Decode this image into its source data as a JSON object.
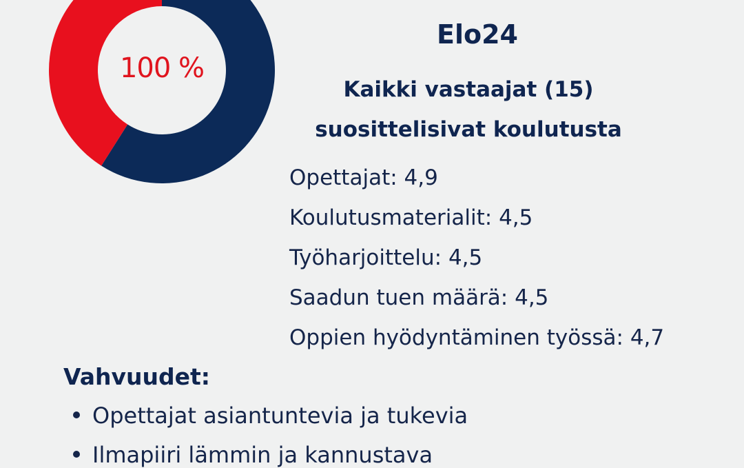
{
  "donut": {
    "label": "100 %",
    "red_color": "#e8101e",
    "navy_color": "#0c2a58",
    "red_fraction": 0.41,
    "navy_fraction": 0.59
  },
  "title": "Elo24",
  "summary": [
    "Kaikki vastaajat (15)",
    "suosittelisivat koulutusta"
  ],
  "ratings": [
    "Opettajat: 4,9",
    "Koulutusmaterialit: 4,5",
    "Työharjoittelu: 4,5",
    "Saadun tuen määrä: 4,5",
    "Oppien hyödyntäminen työssä: 4,7"
  ],
  "strengths": {
    "heading": "Vahvuudet:",
    "items": [
      "Opettajat asiantuntevia ja tukevia",
      "Ilmapiiri lämmin ja kannustava"
    ]
  }
}
